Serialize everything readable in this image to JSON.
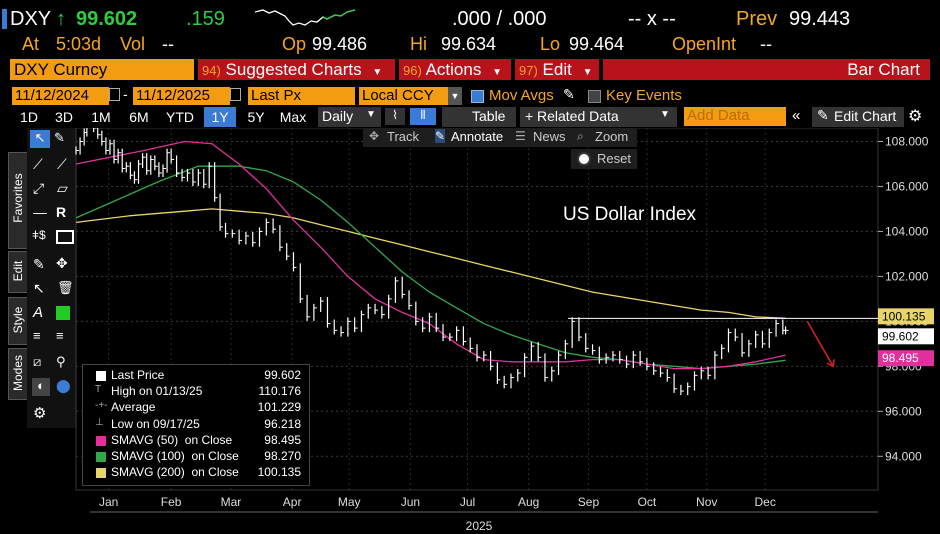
{
  "header": {
    "ticker": "DXY",
    "arrow": "↑",
    "last": "99.602",
    "change": ".159",
    "bidask": ".000 / .000",
    "xx": "-- x --",
    "prev_label": "Prev",
    "prev_value": "99.443",
    "at_label": "At",
    "at_time": "5:03d",
    "vol_label": "Vol",
    "vol_value": "--",
    "op_label": "Op",
    "op_value": "99.486",
    "hi_label": "Hi",
    "hi_value": "99.634",
    "lo_label": "Lo",
    "lo_value": "99.464",
    "openint_label": "OpenInt",
    "openint_value": "--"
  },
  "menubar": {
    "security": "DXY Curncy",
    "item94_num": "94)",
    "item94": "Suggested Charts",
    "item96_num": "96)",
    "item96": "Actions",
    "item97_num": "97)",
    "item97": "Edit",
    "chart_type": "Bar Chart"
  },
  "controls": {
    "start_date": "11/12/2024",
    "end_date": "11/12/2025",
    "field": "Last Px",
    "currency": "Local CCY",
    "mov_avgs": "Mov Avgs",
    "key_events": "Key Events"
  },
  "toolbar": {
    "periods": [
      "1D",
      "3D",
      "1M",
      "6M",
      "YTD",
      "1Y",
      "5Y",
      "Max"
    ],
    "active_period": "1Y",
    "frequency": "Daily",
    "table": "Table",
    "related": "Related Data",
    "add_data_placeholder": "Add Data",
    "edit_chart": "Edit Chart"
  },
  "chart_tools": {
    "track": "Track",
    "annotate": "Annotate",
    "news": "News",
    "zoom": "Zoom",
    "reset": "Reset"
  },
  "side_tabs": [
    "Favorites",
    "Edit",
    "Style",
    "Modes"
  ],
  "chart_data": {
    "type": "line",
    "title": "US Dollar Index",
    "x_labels": [
      "Jan",
      "Feb",
      "Mar",
      "Apr",
      "May",
      "Jun",
      "Jul",
      "Aug",
      "Sep",
      "Oct",
      "Nov",
      "Dec"
    ],
    "year_label": "2025",
    "ylim": [
      92.5,
      108.6
    ],
    "yticks": [
      "108.000",
      "106.000",
      "104.000",
      "102.000",
      "100.000",
      "98.000",
      "96.000",
      "94.000"
    ],
    "grid": true,
    "series": [
      {
        "name": "Last Price",
        "color": "#ffffff",
        "points": [
          [
            0,
            107.6
          ],
          [
            0.3,
            108.0
          ],
          [
            0.6,
            108.4
          ],
          [
            0.8,
            108.9
          ],
          [
            1.0,
            109.1
          ],
          [
            1.3,
            108.6
          ],
          [
            1.6,
            108.3
          ],
          [
            1.9,
            108.0
          ],
          [
            2.2,
            107.6
          ],
          [
            2.5,
            107.9
          ],
          [
            2.8,
            107.2
          ],
          [
            3.1,
            107.5
          ],
          [
            3.4,
            106.8
          ],
          [
            3.7,
            106.9
          ],
          [
            4.0,
            106.5
          ],
          [
            4.3,
            106.3
          ],
          [
            4.6,
            107.0
          ],
          [
            4.9,
            107.3
          ],
          [
            5.2,
            106.7
          ],
          [
            5.5,
            107.2
          ],
          [
            5.8,
            106.9
          ],
          [
            6.1,
            106.6
          ],
          [
            6.4,
            106.8
          ],
          [
            6.7,
            107.5
          ],
          [
            7.0,
            107.2
          ],
          [
            7.4,
            106.6
          ],
          [
            7.8,
            106.4
          ],
          [
            8.2,
            106.6
          ],
          [
            8.6,
            106.2
          ],
          [
            9.0,
            106.6
          ],
          [
            9.4,
            106.1
          ],
          [
            9.8,
            106.9
          ],
          [
            10.2,
            105.5
          ],
          [
            10.6,
            104.2
          ],
          [
            11.0,
            103.9
          ],
          [
            11.5,
            103.9
          ],
          [
            12.0,
            103.6
          ],
          [
            12.5,
            103.8
          ],
          [
            13.0,
            103.5
          ],
          [
            13.5,
            104.0
          ],
          [
            14.0,
            104.4
          ],
          [
            14.5,
            104.1
          ],
          [
            15.0,
            103.3
          ],
          [
            15.5,
            102.9
          ],
          [
            16.0,
            102.4
          ],
          [
            16.5,
            101.0
          ],
          [
            17.0,
            100.2
          ],
          [
            17.5,
            100.6
          ],
          [
            18.0,
            100.9
          ],
          [
            18.5,
            99.9
          ],
          [
            19.0,
            99.6
          ],
          [
            19.5,
            99.5
          ],
          [
            20.0,
            100.0
          ],
          [
            20.5,
            99.7
          ],
          [
            21.0,
            100.3
          ],
          [
            21.5,
            100.6
          ],
          [
            22.0,
            100.5
          ],
          [
            22.5,
            100.3
          ],
          [
            23.0,
            101.0
          ],
          [
            23.5,
            101.8
          ],
          [
            24.0,
            101.2
          ],
          [
            24.5,
            100.7
          ],
          [
            25.0,
            100.0
          ],
          [
            25.5,
            99.7
          ],
          [
            26.0,
            100.2
          ],
          [
            26.5,
            99.7
          ],
          [
            27.0,
            99.3
          ],
          [
            27.5,
            99.3
          ],
          [
            28.0,
            99.6
          ],
          [
            28.5,
            99.1
          ],
          [
            29.0,
            98.8
          ],
          [
            29.5,
            98.4
          ],
          [
            30.0,
            98.5
          ],
          [
            30.5,
            98.0
          ],
          [
            31.0,
            97.4
          ],
          [
            31.5,
            97.2
          ],
          [
            32.0,
            97.5
          ],
          [
            32.5,
            97.7
          ],
          [
            33.0,
            98.4
          ],
          [
            33.5,
            98.9
          ],
          [
            34.0,
            98.4
          ],
          [
            34.5,
            97.5
          ],
          [
            35.0,
            97.8
          ],
          [
            35.5,
            98.5
          ],
          [
            36.0,
            99.0
          ],
          [
            36.5,
            100.0
          ],
          [
            37.0,
            99.3
          ],
          [
            37.5,
            98.8
          ],
          [
            38.0,
            98.7
          ],
          [
            38.5,
            98.3
          ],
          [
            39.0,
            98.4
          ],
          [
            39.5,
            98.5
          ],
          [
            40.0,
            98.3
          ],
          [
            40.5,
            98.1
          ],
          [
            41.0,
            98.5
          ],
          [
            41.5,
            98.2
          ],
          [
            42.0,
            98.0
          ],
          [
            42.5,
            97.8
          ],
          [
            43.0,
            97.7
          ],
          [
            43.5,
            97.5
          ],
          [
            44.0,
            97.0
          ],
          [
            44.5,
            96.9
          ],
          [
            45.0,
            97.1
          ],
          [
            45.5,
            97.6
          ],
          [
            46.0,
            97.8
          ],
          [
            46.5,
            97.6
          ],
          [
            47.0,
            98.5
          ],
          [
            47.5,
            98.8
          ],
          [
            48.0,
            99.5
          ],
          [
            48.5,
            99.3
          ],
          [
            49.0,
            98.6
          ],
          [
            49.5,
            99.0
          ],
          [
            50.0,
            99.4
          ],
          [
            50.5,
            99.0
          ],
          [
            51.0,
            99.5
          ],
          [
            51.5,
            99.9
          ],
          [
            52.0,
            99.6
          ],
          [
            52.2,
            99.6
          ]
        ]
      },
      {
        "name": "SMAVG (50) on Close",
        "color": "#e0309c",
        "points": [
          [
            0,
            107.0
          ],
          [
            5,
            107.6
          ],
          [
            8,
            108.0
          ],
          [
            10,
            107.9
          ],
          [
            12,
            107.0
          ],
          [
            14,
            105.9
          ],
          [
            16,
            104.5
          ],
          [
            18,
            103.3
          ],
          [
            20,
            102.0
          ],
          [
            22,
            101.0
          ],
          [
            24,
            100.4
          ],
          [
            26,
            99.9
          ],
          [
            28,
            99.0
          ],
          [
            30,
            98.3
          ],
          [
            32,
            98.2
          ],
          [
            34,
            98.2
          ],
          [
            36,
            98.2
          ],
          [
            38,
            98.3
          ],
          [
            40,
            98.3
          ],
          [
            42,
            98.1
          ],
          [
            44,
            97.9
          ],
          [
            46,
            97.9
          ],
          [
            48,
            98.0
          ],
          [
            50,
            98.2
          ],
          [
            52.2,
            98.5
          ]
        ]
      },
      {
        "name": "SMAVG (100) on Close",
        "color": "#33a84b",
        "points": [
          [
            0,
            104.6
          ],
          [
            3,
            105.4
          ],
          [
            6,
            106.2
          ],
          [
            9,
            106.9
          ],
          [
            12,
            106.9
          ],
          [
            14,
            106.7
          ],
          [
            16,
            106.2
          ],
          [
            18,
            105.4
          ],
          [
            20,
            104.4
          ],
          [
            22,
            103.3
          ],
          [
            24,
            102.2
          ],
          [
            26,
            101.3
          ],
          [
            28,
            100.6
          ],
          [
            30,
            99.9
          ],
          [
            32,
            99.4
          ],
          [
            34,
            99.0
          ],
          [
            36,
            98.6
          ],
          [
            38,
            98.4
          ],
          [
            40,
            98.3
          ],
          [
            42,
            98.1
          ],
          [
            44,
            98.0
          ],
          [
            46,
            97.9
          ],
          [
            48,
            98.0
          ],
          [
            50,
            98.1
          ],
          [
            52.2,
            98.27
          ]
        ]
      },
      {
        "name": "SMAVG (200) on Close",
        "color": "#e8d56a",
        "points": [
          [
            0,
            104.4
          ],
          [
            4,
            104.7
          ],
          [
            8,
            104.9
          ],
          [
            10,
            105.0
          ],
          [
            12,
            104.9
          ],
          [
            14,
            104.8
          ],
          [
            16,
            104.6
          ],
          [
            18,
            104.3
          ],
          [
            20,
            104.0
          ],
          [
            22,
            103.7
          ],
          [
            24,
            103.4
          ],
          [
            26,
            103.1
          ],
          [
            28,
            102.8
          ],
          [
            30,
            102.5
          ],
          [
            32,
            102.2
          ],
          [
            34,
            101.9
          ],
          [
            36,
            101.6
          ],
          [
            38,
            101.3
          ],
          [
            40,
            101.1
          ],
          [
            42,
            100.9
          ],
          [
            44,
            100.7
          ],
          [
            46,
            100.5
          ],
          [
            48,
            100.4
          ],
          [
            50,
            100.2
          ],
          [
            52.2,
            100.135
          ]
        ]
      }
    ],
    "last_price_line": 100.135,
    "y_tags": [
      {
        "label": "100.135",
        "value": 100.135,
        "bg": "#e8d56a",
        "fg": "#000000"
      },
      {
        "label": "99.602",
        "value": 99.602,
        "bg": "#ffffff",
        "fg": "#000000"
      },
      {
        "label": "98.495",
        "value": 98.495,
        "bg": "#e0309c",
        "fg": "#ffffff"
      }
    ],
    "arrow_color": "#d42020",
    "legend": [
      {
        "label": "Last Price",
        "value": "99.602",
        "color": "#ffffff"
      },
      {
        "label": "High on 01/13/25",
        "value": "110.176",
        "color": ""
      },
      {
        "label": "Average",
        "value": "101.229",
        "color": ""
      },
      {
        "label": "Low on 09/17/25",
        "value": "96.218",
        "color": ""
      },
      {
        "label": "SMAVG (50)  on Close",
        "value": "98.495",
        "color": "#e0309c"
      },
      {
        "label": "SMAVG (100)  on Close",
        "value": "98.270",
        "color": "#33a84b"
      },
      {
        "label": "SMAVG (200)  on Close",
        "value": "100.135",
        "color": "#e8d56a"
      }
    ]
  }
}
